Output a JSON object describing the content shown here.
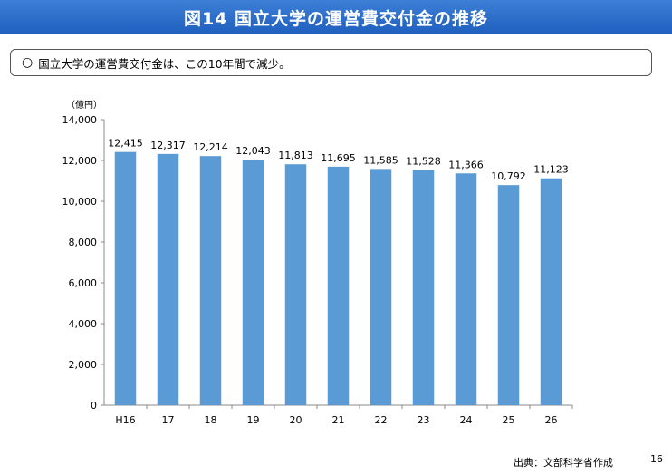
{
  "header": {
    "title": "図14 国立大学の運営費交付金の推移"
  },
  "summary": {
    "bullet": "○",
    "text": "国立大学の運営費交付金は、この10年間で減少。"
  },
  "footer": {
    "source": "出典：文部科学省作成",
    "page_number": "16"
  },
  "colors": {
    "bar": "#5b9bd5",
    "header": "#2a6ccb"
  },
  "chart_data": {
    "type": "bar",
    "unit_label": "（億円）",
    "categories": [
      "H16",
      "17",
      "18",
      "19",
      "20",
      "21",
      "22",
      "23",
      "24",
      "25",
      "26"
    ],
    "values": [
      12415,
      12317,
      12214,
      12043,
      11813,
      11695,
      11585,
      11528,
      11366,
      10792,
      11123
    ],
    "value_labels": [
      "12,415",
      "12,317",
      "12,214",
      "12,043",
      "11,813",
      "11,695",
      "11,585",
      "11,528",
      "11,366",
      "10,792",
      "11,123"
    ],
    "ylim": [
      0,
      14000
    ],
    "yticks": [
      0,
      2000,
      4000,
      6000,
      8000,
      10000,
      12000,
      14000
    ],
    "ytick_labels": [
      "0",
      "2,000",
      "4,000",
      "6,000",
      "8,000",
      "10,000",
      "12,000",
      "14,000"
    ],
    "grid": false,
    "legend": false
  }
}
